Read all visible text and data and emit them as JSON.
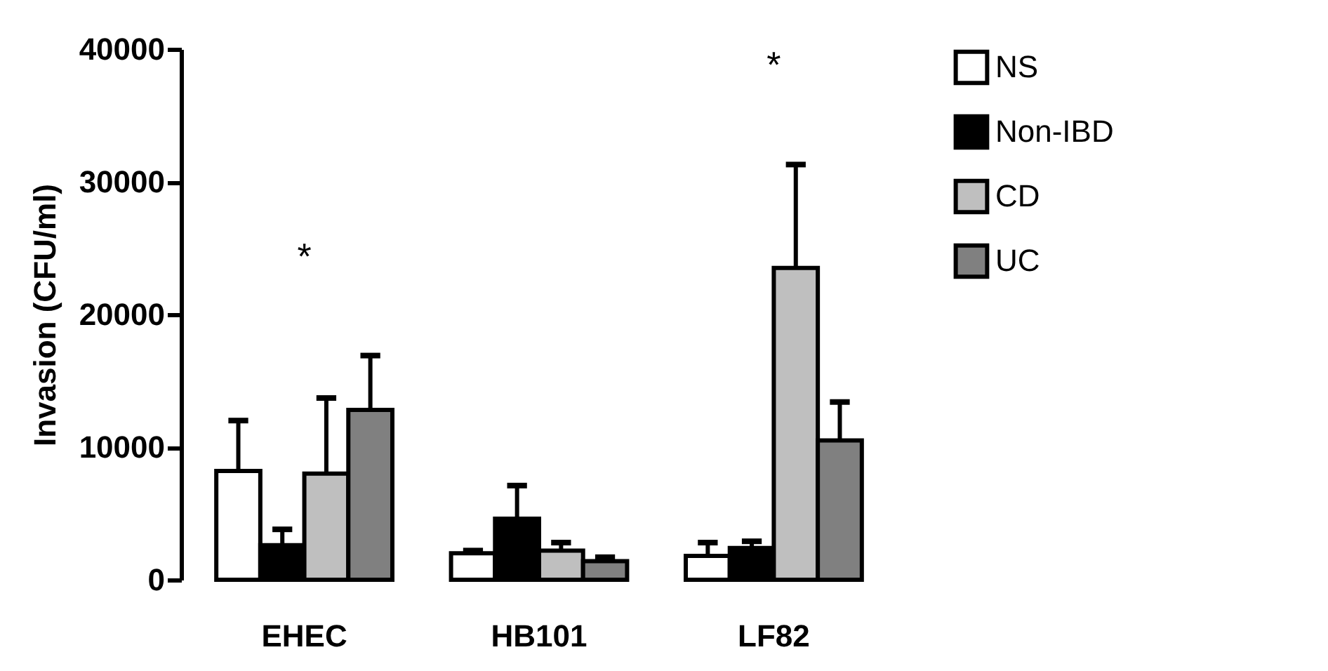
{
  "chart_data": {
    "type": "bar",
    "ylabel": "Invasion (CFU/ml)",
    "categories": [
      "EHEC",
      "HB101",
      "LF82"
    ],
    "series": [
      {
        "name": "NS",
        "color": "#ffffff",
        "values": [
          8200,
          2000,
          1800
        ],
        "errors": [
          [
            8200,
            12000
          ],
          [
            2000,
            2200
          ],
          [
            1800,
            2800
          ]
        ]
      },
      {
        "name": "Non-IBD",
        "color": "#000000",
        "values": [
          2600,
          4600,
          2400
        ],
        "errors": [
          [
            2600,
            3800
          ],
          [
            4600,
            7100
          ],
          [
            2400,
            2900
          ]
        ]
      },
      {
        "name": "CD",
        "color": "#bfbfbf",
        "values": [
          8000,
          2200,
          23500
        ],
        "errors": [
          [
            8000,
            13700
          ],
          [
            2200,
            2800
          ],
          [
            23500,
            31300
          ]
        ]
      },
      {
        "name": "UC",
        "color": "#808080",
        "values": [
          12800,
          1400,
          10500
        ],
        "errors": [
          [
            12800,
            16900
          ],
          [
            1400,
            1700
          ],
          [
            10500,
            13400
          ]
        ]
      }
    ],
    "annotations": [
      "*",
      "*"
    ],
    "ylim": [
      0,
      40000
    ],
    "yticks": [
      0,
      10000,
      20000,
      30000,
      40000
    ],
    "grid": false,
    "legend": "top right"
  }
}
